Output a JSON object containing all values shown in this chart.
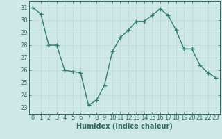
{
  "x": [
    0,
    1,
    2,
    3,
    4,
    5,
    6,
    7,
    8,
    9,
    10,
    11,
    12,
    13,
    14,
    15,
    16,
    17,
    18,
    19,
    20,
    21,
    22,
    23
  ],
  "y": [
    31,
    30.5,
    28,
    28,
    26,
    25.9,
    25.8,
    23.2,
    23.6,
    24.8,
    27.5,
    28.6,
    29.2,
    29.9,
    29.9,
    30.4,
    30.9,
    30.4,
    29.2,
    27.7,
    27.7,
    26.4,
    25.8,
    25.4
  ],
  "line_color": "#2e7d6e",
  "marker": "+",
  "marker_size": 4,
  "bg_color": "#cde8e5",
  "grid_color": "#b8d8d4",
  "xlabel": "Humidex (Indice chaleur)",
  "ylim": [
    22.5,
    31.5
  ],
  "xlim": [
    -0.5,
    23.5
  ],
  "yticks": [
    23,
    24,
    25,
    26,
    27,
    28,
    29,
    30,
    31
  ],
  "xticks": [
    0,
    1,
    2,
    3,
    4,
    5,
    6,
    7,
    8,
    9,
    10,
    11,
    12,
    13,
    14,
    15,
    16,
    17,
    18,
    19,
    20,
    21,
    22,
    23
  ],
  "tick_color": "#2e6b5e",
  "label_color": "#2e6b5e",
  "label_fontsize": 7,
  "tick_fontsize": 6,
  "linewidth": 1.0,
  "markeredgewidth": 1.0
}
